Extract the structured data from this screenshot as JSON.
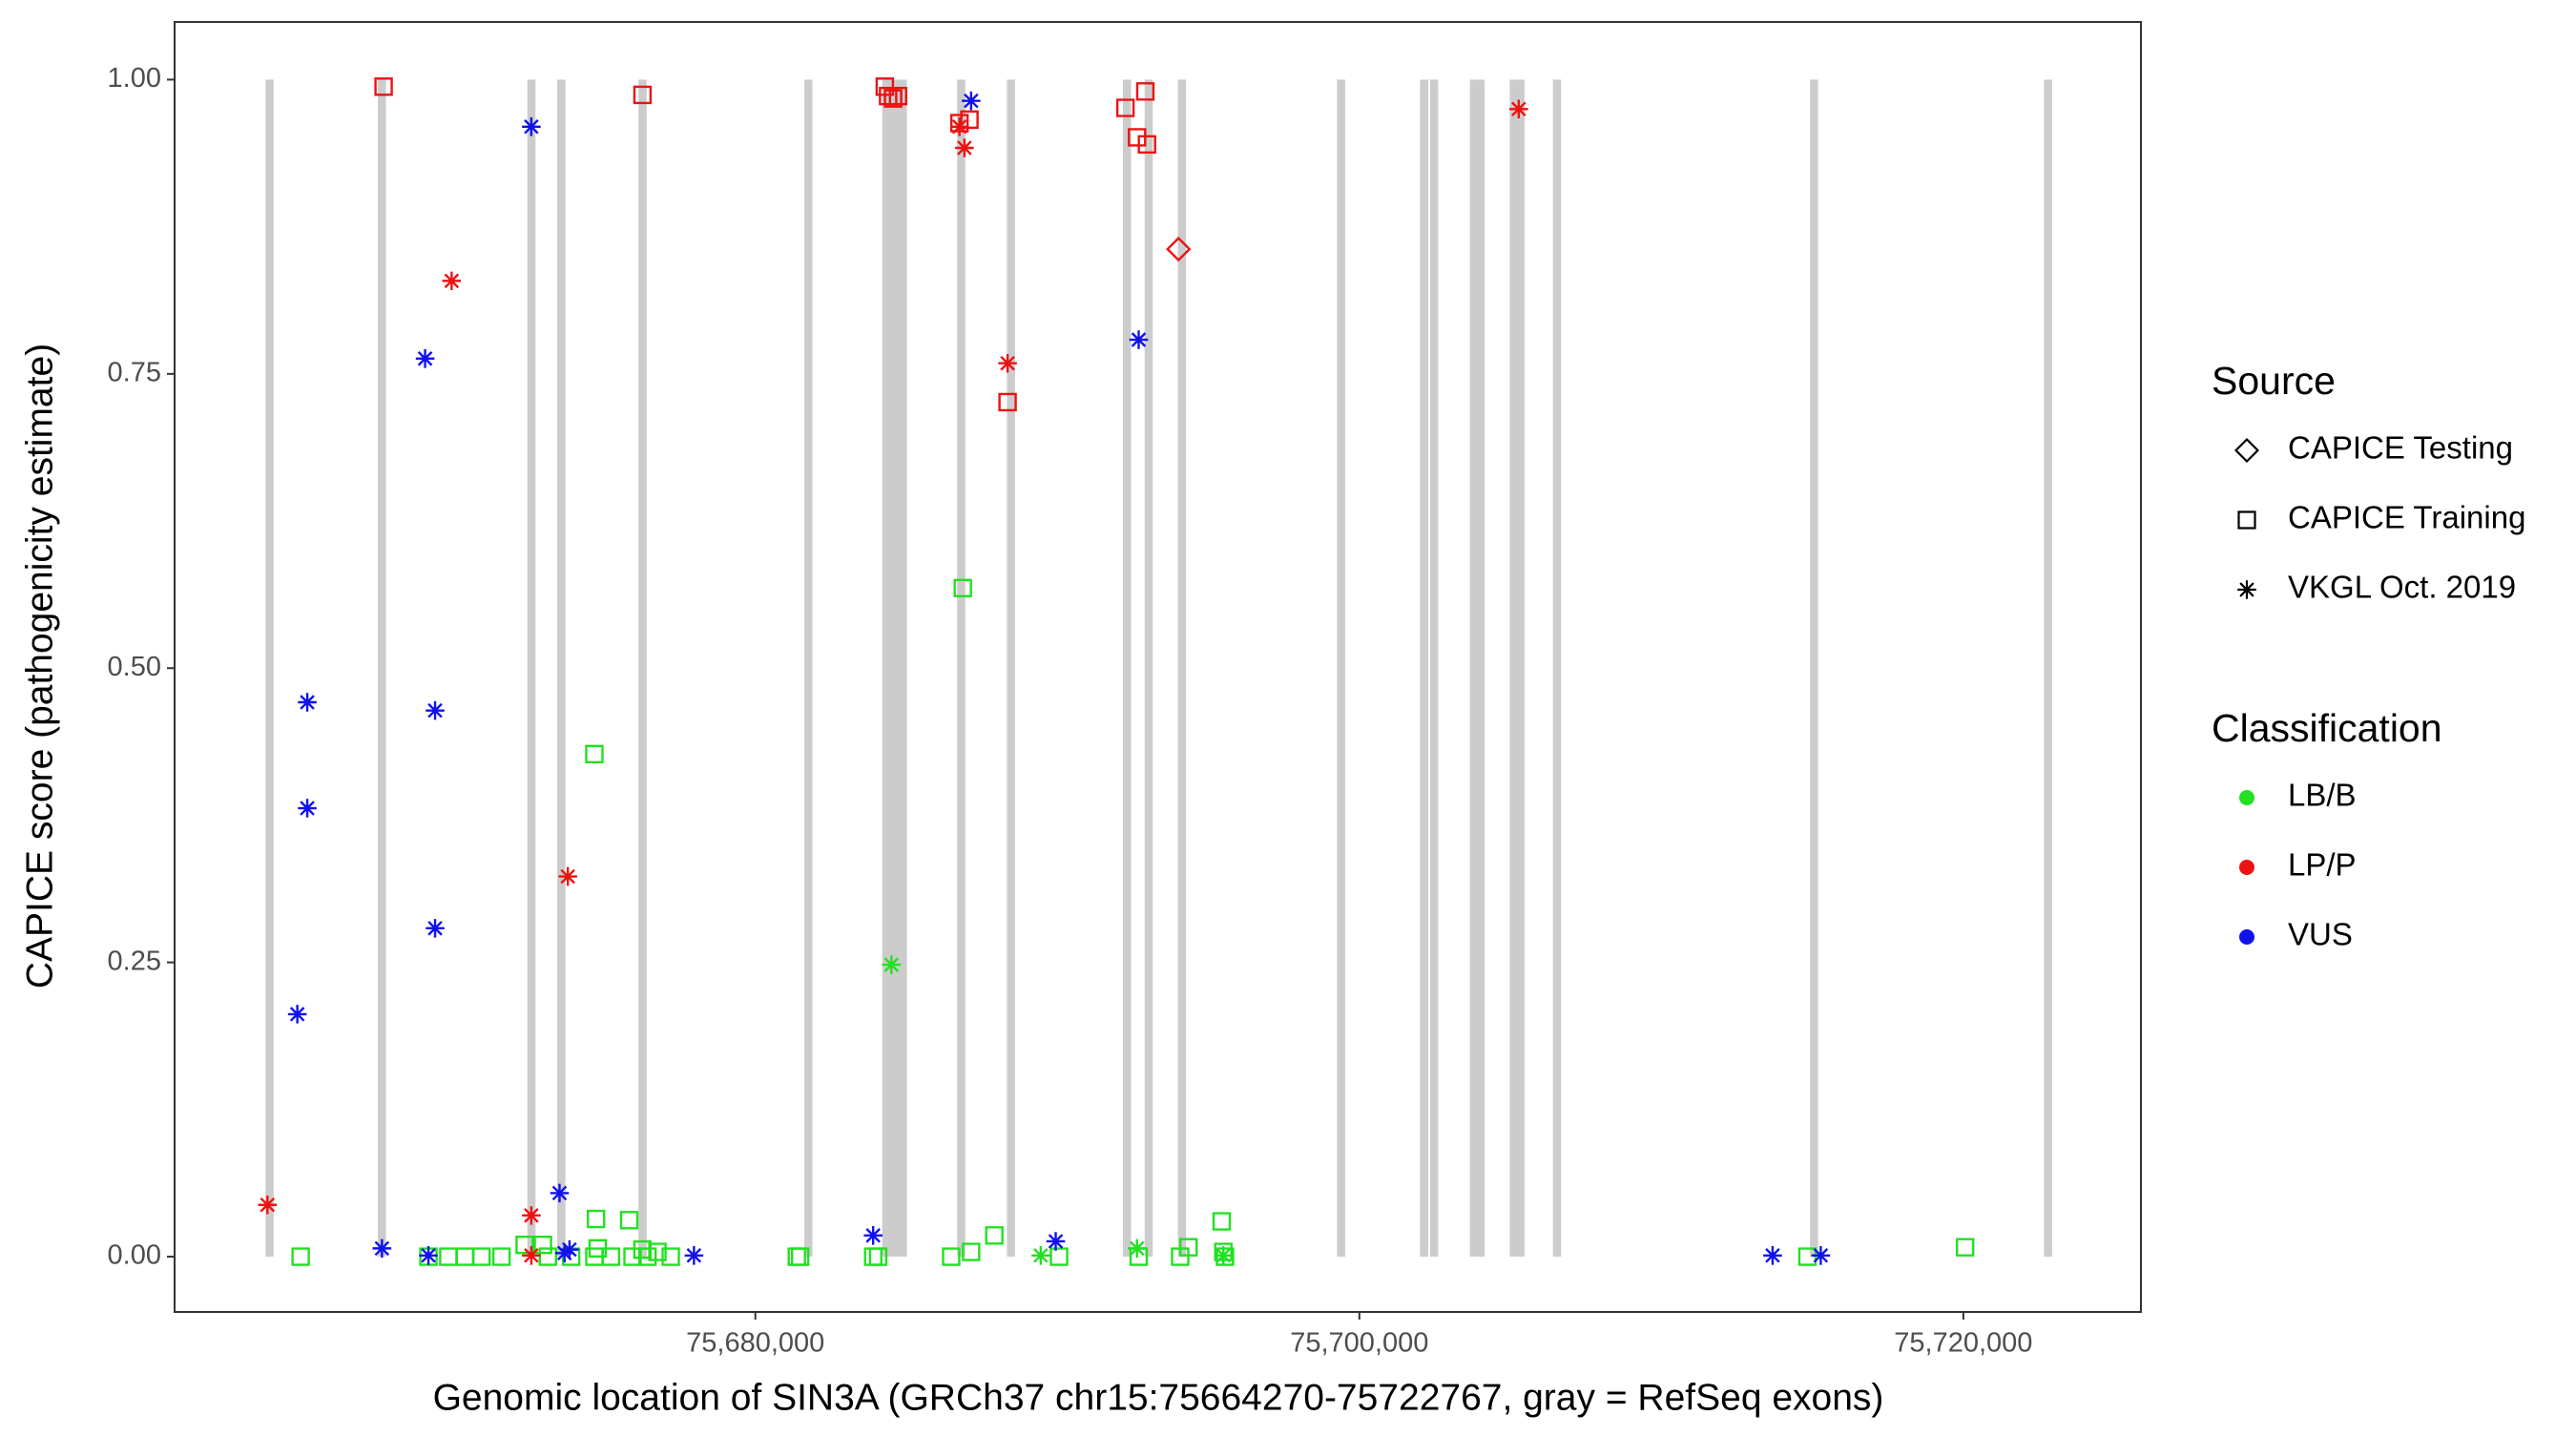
{
  "chart_data": {
    "type": "scatter",
    "xlabel": "Genomic location of SIN3A (GRCh37 chr15:75664270-75722767, gray = RefSeq exons)",
    "ylabel": "CAPICE score (pathogenicity estimate)",
    "xlim": [
      75660770,
      75725880
    ],
    "ylim": [
      -0.047,
      1.049
    ],
    "xticks": [
      {
        "value": 75680000,
        "label": "75,680,000"
      },
      {
        "value": 75700000,
        "label": "75,700,000"
      },
      {
        "value": 75720000,
        "label": "75,720,000"
      }
    ],
    "yticks": [
      {
        "value": 0,
        "label": "0.00"
      },
      {
        "value": 0.25,
        "label": "0.25"
      },
      {
        "value": 0.5,
        "label": "0.50"
      },
      {
        "value": 0.75,
        "label": "0.75"
      },
      {
        "value": 1,
        "label": "1.00"
      }
    ],
    "grid": false,
    "exon_color": "#cccccc",
    "exons": [
      [
        75663780,
        75664050
      ],
      [
        75667500,
        75667770
      ],
      [
        75672450,
        75672720
      ],
      [
        75673440,
        75673710
      ],
      [
        75676130,
        75676400
      ],
      [
        75681620,
        75681890
      ],
      [
        75684200,
        75685020
      ],
      [
        75686680,
        75686950
      ],
      [
        75688330,
        75688600
      ],
      [
        75692170,
        75692440
      ],
      [
        75692890,
        75693160
      ],
      [
        75693990,
        75694260
      ],
      [
        75699260,
        75699530
      ],
      [
        75702010,
        75702280
      ],
      [
        75702340,
        75702610
      ],
      [
        75703660,
        75703930
      ],
      [
        75703880,
        75704150
      ],
      [
        75704980,
        75705250
      ],
      [
        75705200,
        75705470
      ],
      [
        75706410,
        75706680
      ],
      [
        75714920,
        75715190
      ],
      [
        75722670,
        75722940
      ]
    ],
    "shape_legend": {
      "title": "Source",
      "entries": [
        {
          "name": "CAPICE Testing",
          "shape": "diamond"
        },
        {
          "name": "CAPICE Training",
          "shape": "square"
        },
        {
          "name": "VKGL Oct. 2019",
          "shape": "asterisk"
        }
      ]
    },
    "color_legend": {
      "title": "Classification",
      "entries": [
        {
          "name": "LB/B",
          "color": "#22e022"
        },
        {
          "name": "LP/P",
          "color": "#ee1111"
        },
        {
          "name": "VUS",
          "color": "#1111ee"
        }
      ]
    },
    "series": [
      {
        "source": "CAPICE Training",
        "classification": "LB/B",
        "x": [
          75664944,
          75669175,
          75669834,
          75670384,
          75670933,
          75671593,
          75672362,
          75672966,
          75673131,
          75673901,
          75674670,
          75674670,
          75674725,
          75674780,
          75675219,
          75675824,
          75675934,
          75676263,
          75676428,
          75676758,
          75677198,
          75681374,
          75681484,
          75683901,
          75684066,
          75686484,
          75686869,
          75687144,
          75687913,
          75690056,
          75692693,
          75694067,
          75694342,
          75695441,
          75695496,
          75695551,
          75714838,
          75720059
        ],
        "values": [
          0,
          0,
          0,
          0,
          0,
          0,
          0.01,
          0.01,
          0,
          0,
          0,
          0.427,
          0.032,
          0.007,
          0,
          0.031,
          0,
          0.006,
          0,
          0.004,
          0,
          0,
          0,
          0,
          0,
          0,
          0.568,
          0.004,
          0.018,
          0,
          0,
          0,
          0.008,
          0.03,
          0.004,
          0,
          0,
          0.008
        ]
      },
      {
        "source": "CAPICE Training",
        "classification": "LP/P",
        "x": [
          75667691,
          75676263,
          75684286,
          75684396,
          75684561,
          75684726,
          75686759,
          75687089,
          75688352,
          75692254,
          75692639,
          75692913,
          75692968
        ],
        "values": [
          0.994,
          0.987,
          0.994,
          0.986,
          0.984,
          0.986,
          0.963,
          0.966,
          0.726,
          0.976,
          0.951,
          0.99,
          0.945
        ]
      },
      {
        "source": "CAPICE Testing",
        "classification": "LP/P",
        "x": [
          75694012
        ],
        "values": [
          0.856
        ]
      },
      {
        "source": "VKGL Oct. 2019",
        "classification": "LB/B",
        "x": [
          75684506,
          75689451,
          75692639,
          75695496
        ],
        "values": [
          0.248,
          0.001,
          0.007,
          0.001
        ]
      },
      {
        "source": "VKGL Oct. 2019",
        "classification": "LP/P",
        "x": [
          75663845,
          75669944,
          75672582,
          75672582,
          75673791,
          75686924,
          75686759,
          75688352,
          75705277
        ],
        "values": [
          0.044,
          0.829,
          0.035,
          0.001,
          0.323,
          0.942,
          0.96,
          0.759,
          0.975
        ]
      },
      {
        "source": "VKGL Oct. 2019",
        "classification": "VUS",
        "x": [
          75664834,
          75665163,
          75665163,
          75667636,
          75669065,
          75669175,
          75669395,
          75669395,
          75672582,
          75673516,
          75673681,
          75673846,
          75677967,
          75683901,
          75687144,
          75689946,
          75692693,
          75713684,
          75715278
        ],
        "values": [
          0.206,
          0.381,
          0.471,
          0.007,
          0.763,
          0.001,
          0.464,
          0.279,
          0.96,
          0.054,
          0.003,
          0.006,
          0.001,
          0.018,
          0.982,
          0.013,
          0.779,
          0.001,
          0.001
        ]
      }
    ]
  }
}
